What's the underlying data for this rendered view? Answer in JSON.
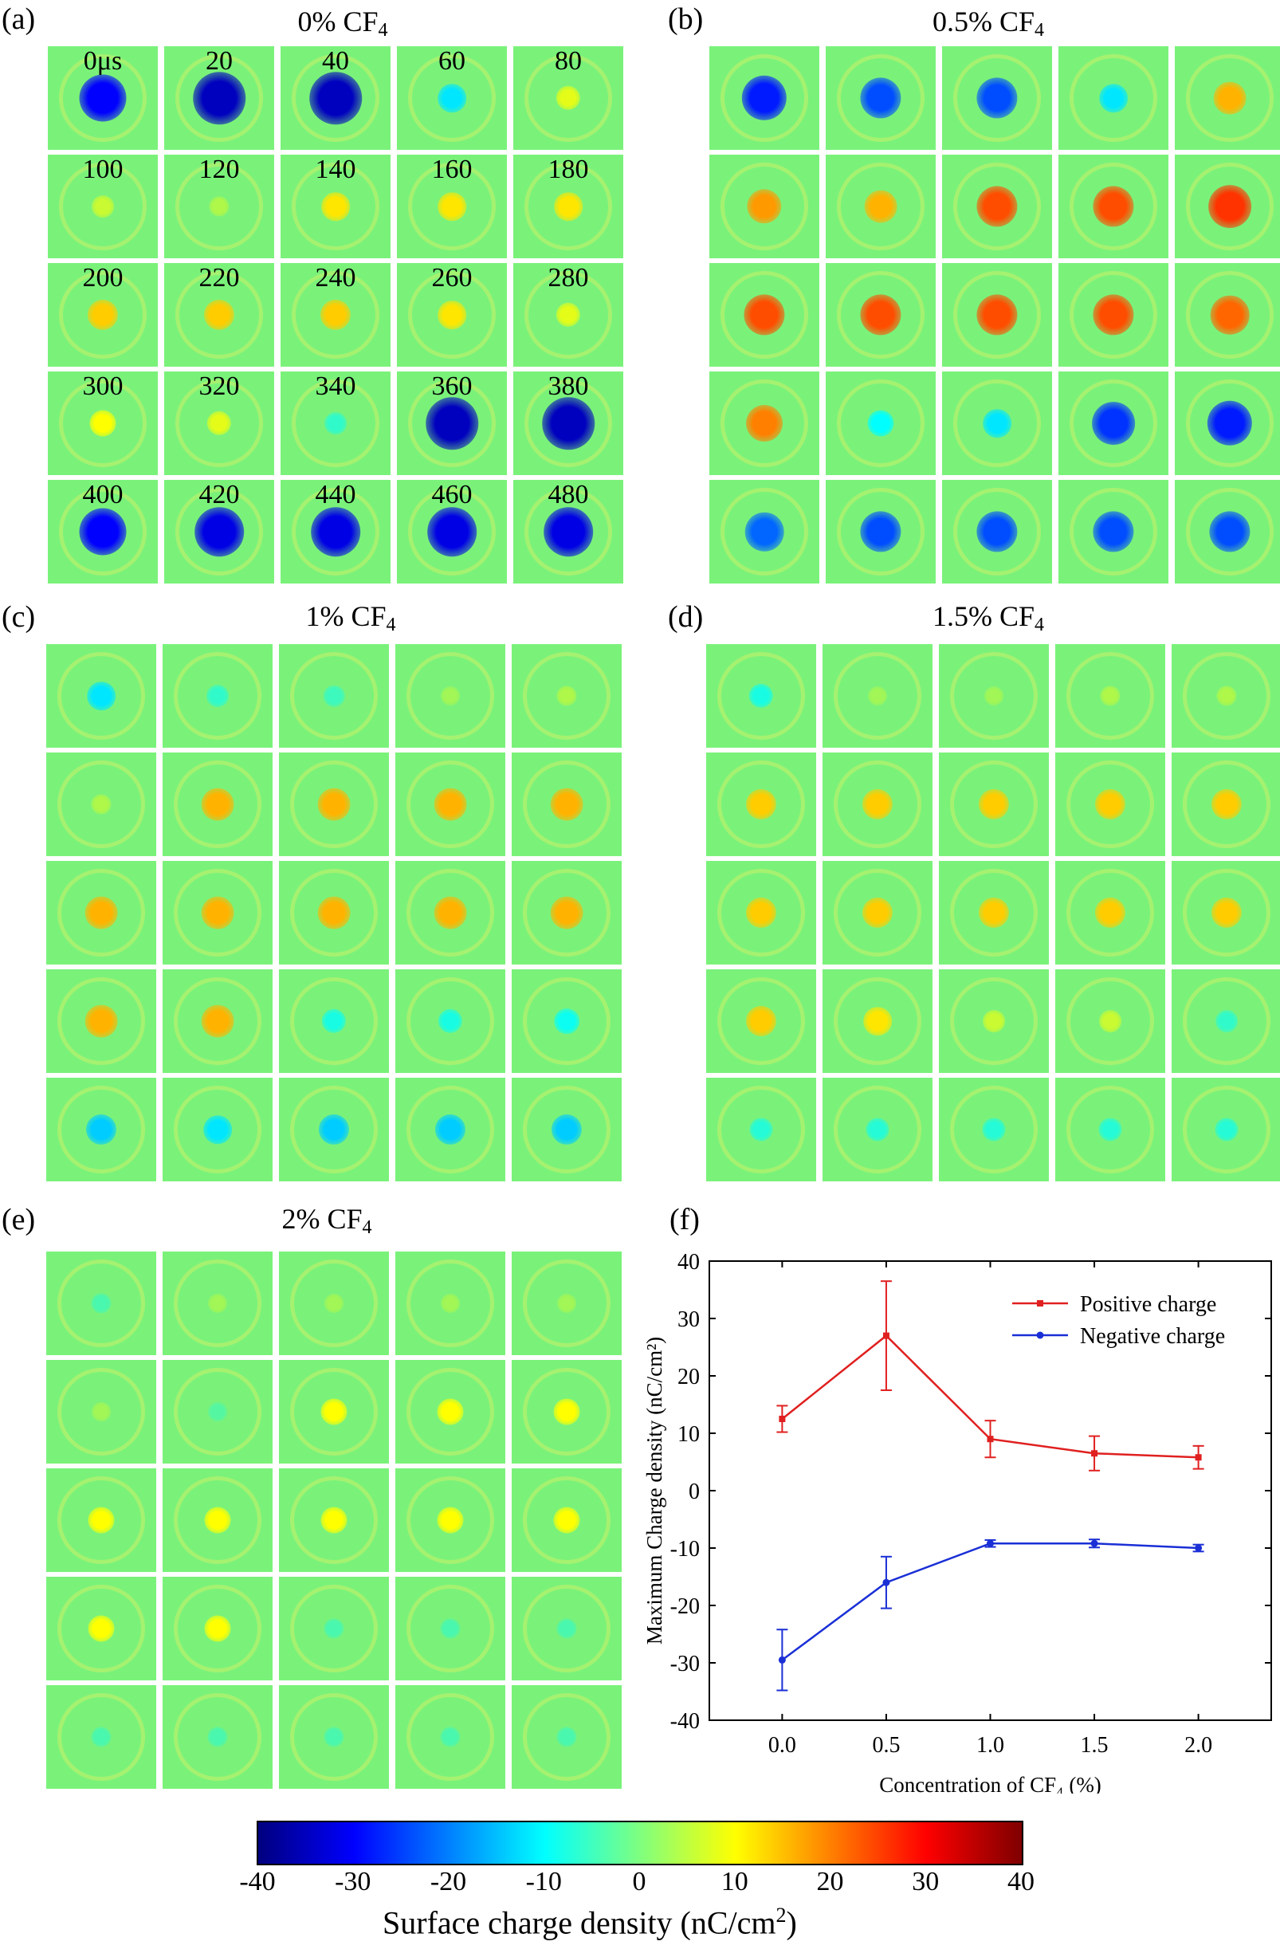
{
  "panels": [
    {
      "letter": "(a)",
      "title_main": "0% CF",
      "title_sub": "4",
      "tile_labels": [
        "0μs",
        "20",
        "40",
        "60",
        "80",
        "100",
        "120",
        "140",
        "160",
        "180",
        "200",
        "220",
        "240",
        "260",
        "280",
        "300",
        "320",
        "340",
        "360",
        "380",
        "400",
        "420",
        "440",
        "460",
        "480"
      ],
      "tile_values": [
        -30,
        -35,
        -35,
        -12,
        8,
        6,
        4,
        12,
        12,
        12,
        14,
        14,
        14,
        12,
        8,
        10,
        8,
        -6,
        -35,
        -35,
        -30,
        -32,
        -32,
        -32,
        -32
      ]
    },
    {
      "letter": "(b)",
      "title_main": "0.5% CF",
      "title_sub": "4",
      "tile_labels": [],
      "tile_values": [
        -28,
        -24,
        -24,
        -12,
        16,
        18,
        16,
        24,
        24,
        26,
        24,
        24,
        24,
        24,
        22,
        20,
        -10,
        -12,
        -26,
        -28,
        -22,
        -24,
        -24,
        -24,
        -24
      ]
    },
    {
      "letter": "(c)",
      "title_main": "1% CF",
      "title_sub": "4",
      "tile_labels": [],
      "tile_values": [
        -12,
        -6,
        -5,
        3,
        4,
        4,
        16,
        16,
        16,
        16,
        16,
        16,
        16,
        16,
        16,
        16,
        16,
        -8,
        -8,
        -9,
        -14,
        -12,
        -14,
        -14,
        -14
      ]
    },
    {
      "letter": "(d)",
      "title_main": "1.5% CF",
      "title_sub": "4",
      "tile_labels": [],
      "tile_values": [
        -8,
        3,
        3,
        4,
        4,
        14,
        14,
        14,
        14,
        14,
        14,
        14,
        14,
        14,
        14,
        14,
        12,
        6,
        6,
        -6,
        -7,
        -7,
        -7,
        -7,
        -7
      ]
    },
    {
      "letter": "(e)",
      "title_main": "2% CF",
      "title_sub": "4",
      "tile_labels": [],
      "tile_values": [
        -4,
        3,
        3,
        3,
        3,
        3,
        -3,
        10,
        10,
        10,
        10,
        10,
        10,
        10,
        10,
        10,
        10,
        -4,
        -4,
        -4,
        -4,
        -4,
        -4,
        -4,
        -4
      ]
    }
  ],
  "chart_data": {
    "letter": "(f)",
    "type": "line",
    "x": [
      0.0,
      0.5,
      1.0,
      1.5,
      2.0
    ],
    "xticks": [
      "0.0",
      "0.5",
      "1.0",
      "1.5",
      "2.0"
    ],
    "yticks": [
      "40",
      "30",
      "20",
      "10",
      "0",
      "-10",
      "-20",
      "-30",
      "-40"
    ],
    "xlabel": "Concentration of CF₄ (%)",
    "ylabel": "Maximum Charge density (nC/cm²)",
    "xlim": [
      -0.35,
      2.35
    ],
    "ylim": [
      -40,
      40
    ],
    "legend_position": "top-right",
    "series": [
      {
        "name": "Positive charge",
        "color": "#e02020",
        "values": [
          12.5,
          27,
          9,
          6.5,
          5.8
        ],
        "errors": [
          2.3,
          9.5,
          3.2,
          3,
          2
        ]
      },
      {
        "name": "Negative charge",
        "color": "#1a2fd6",
        "values": [
          -29.5,
          -16,
          -9.2,
          -9.2,
          -10
        ],
        "errors": [
          5.3,
          4.5,
          0.6,
          0.7,
          0.6
        ]
      }
    ]
  },
  "colorbar": {
    "ticks": [
      "-40",
      "-30",
      "-20",
      "-10",
      "0",
      "10",
      "20",
      "30",
      "40"
    ],
    "title": "Surface charge density (nC/cm",
    "title_sup": "2",
    "title_end": ")",
    "range": [
      -40,
      40
    ]
  }
}
